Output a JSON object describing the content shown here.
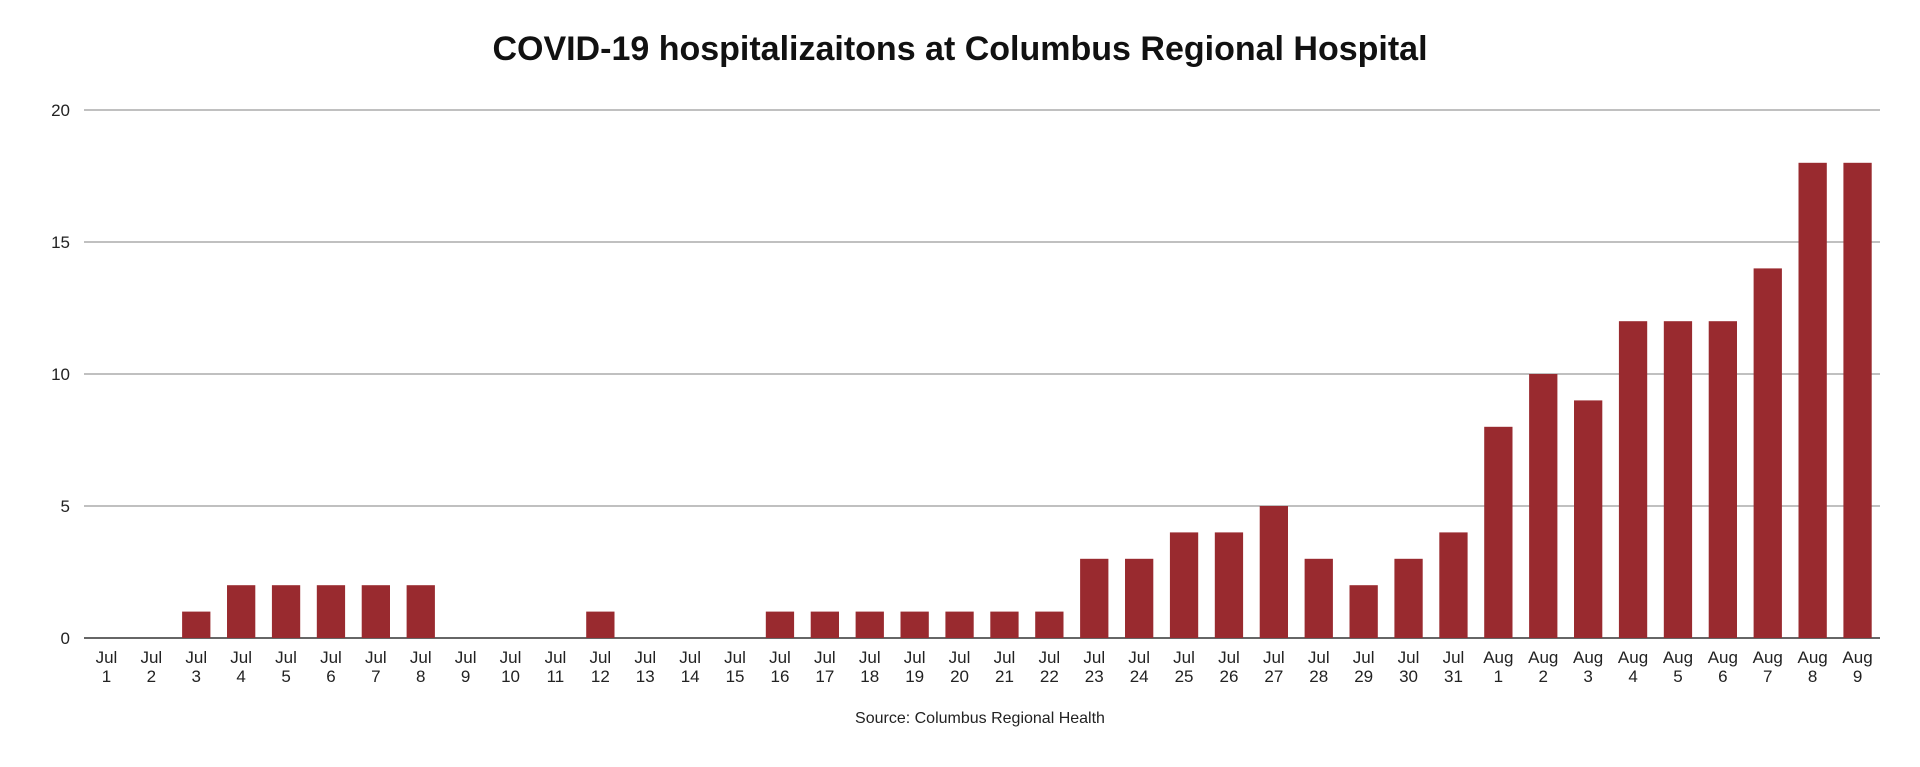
{
  "chart_data": {
    "type": "bar",
    "title": "COVID-19 hospitalizaitons at Columbus Regional Hospital",
    "source": "Source: Columbus Regional Health",
    "xlabel": "",
    "ylabel": "",
    "ylim": [
      0,
      20
    ],
    "yticks": [
      0,
      5,
      10,
      15,
      20
    ],
    "grid": true,
    "bar_color": "#992a2f",
    "gridline_color": "#9a9a9a",
    "categories": [
      [
        "Jul",
        "1"
      ],
      [
        "Jul",
        "2"
      ],
      [
        "Jul",
        "3"
      ],
      [
        "Jul",
        "4"
      ],
      [
        "Jul",
        "5"
      ],
      [
        "Jul",
        "6"
      ],
      [
        "Jul",
        "7"
      ],
      [
        "Jul",
        "8"
      ],
      [
        "Jul",
        "9"
      ],
      [
        "Jul",
        "10"
      ],
      [
        "Jul",
        "11"
      ],
      [
        "Jul",
        "12"
      ],
      [
        "Jul",
        "13"
      ],
      [
        "Jul",
        "14"
      ],
      [
        "Jul",
        "15"
      ],
      [
        "Jul",
        "16"
      ],
      [
        "Jul",
        "17"
      ],
      [
        "Jul",
        "18"
      ],
      [
        "Jul",
        "19"
      ],
      [
        "Jul",
        "20"
      ],
      [
        "Jul",
        "21"
      ],
      [
        "Jul",
        "22"
      ],
      [
        "Jul",
        "23"
      ],
      [
        "Jul",
        "24"
      ],
      [
        "Jul",
        "25"
      ],
      [
        "Jul",
        "26"
      ],
      [
        "Jul",
        "27"
      ],
      [
        "Jul",
        "28"
      ],
      [
        "Jul",
        "29"
      ],
      [
        "Jul",
        "30"
      ],
      [
        "Jul",
        "31"
      ],
      [
        "Aug",
        "1"
      ],
      [
        "Aug",
        "2"
      ],
      [
        "Aug",
        "3"
      ],
      [
        "Aug",
        "4"
      ],
      [
        "Aug",
        "5"
      ],
      [
        "Aug",
        "6"
      ],
      [
        "Aug",
        "7"
      ],
      [
        "Aug",
        "8"
      ],
      [
        "Aug",
        "9"
      ]
    ],
    "values": [
      0,
      0,
      1,
      2,
      2,
      2,
      2,
      2,
      0,
      0,
      0,
      1,
      0,
      0,
      0,
      1,
      1,
      1,
      1,
      1,
      1,
      1,
      3,
      3,
      4,
      4,
      5,
      3,
      2,
      3,
      4,
      8,
      10,
      9,
      12,
      12,
      12,
      14,
      18,
      18
    ]
  }
}
